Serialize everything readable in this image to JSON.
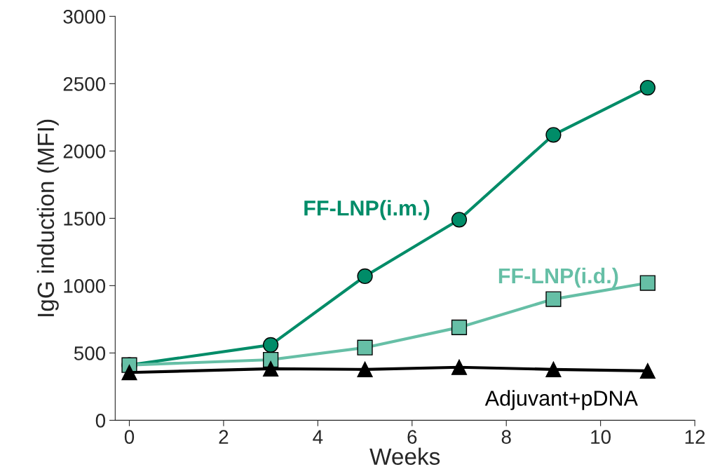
{
  "chart_data": {
    "type": "line",
    "xlabel": "Weeks",
    "ylabel": "IgG induction (MFI)",
    "x": [
      0,
      3,
      5,
      7,
      9,
      11
    ],
    "series": [
      {
        "name": "FF-LNP(i.m.)",
        "color": "#008c68",
        "marker": "circle",
        "values": [
          410,
          560,
          1070,
          1490,
          2120,
          2470
        ]
      },
      {
        "name": "FF-LNP(i.d.)",
        "color": "#66bfa6",
        "marker": "square",
        "values": [
          410,
          450,
          540,
          690,
          900,
          1020
        ]
      },
      {
        "name": "Adjuvant+pDNA",
        "color": "#000000",
        "marker": "triangle",
        "values": [
          355,
          383,
          378,
          394,
          378,
          367
        ]
      }
    ],
    "xlim": [
      -0.3,
      12
    ],
    "xticks": [
      0,
      2,
      4,
      6,
      8,
      10,
      12
    ],
    "ylim": [
      0,
      3000
    ],
    "yticks": [
      0,
      500,
      1000,
      1500,
      2000,
      2500,
      3000
    ],
    "grid": false,
    "legend": false,
    "line_style": "solid"
  }
}
